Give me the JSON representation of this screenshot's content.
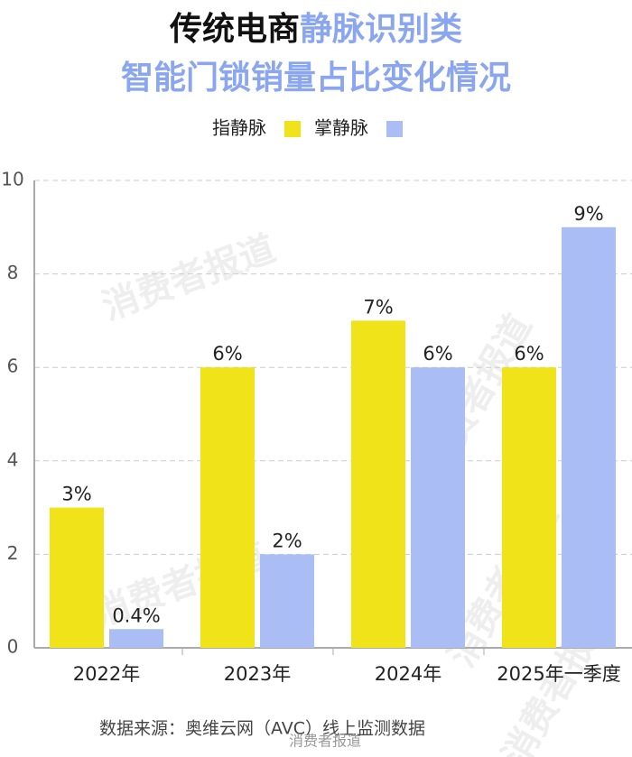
{
  "chart_data": {
    "type": "bar",
    "title": [
      "传统电商",
      "静脉识别类"
    ],
    "subtitle": "智能门锁销量占比变化情况",
    "categories": [
      "2022年",
      "2023年",
      "2024年",
      "2025年一季度"
    ],
    "series": [
      {
        "name": "指静脉",
        "color": "#f0e31a",
        "values": [
          3,
          6,
          7,
          6
        ],
        "value_labels": [
          "3%",
          "6%",
          "7%",
          "6%"
        ]
      },
      {
        "name": "掌静脉",
        "color": "#aabef5",
        "values": [
          0.4,
          2,
          6,
          9
        ],
        "value_labels": [
          "0.4%",
          "2%",
          "6%",
          "9%"
        ]
      }
    ],
    "ylim": [
      0,
      10
    ],
    "yticks": [
      0,
      2,
      4,
      6,
      8,
      10
    ],
    "grid": true,
    "source": "数据来源：奥维云网（AVC）线上监测数据",
    "watermark": "消费者报道"
  }
}
